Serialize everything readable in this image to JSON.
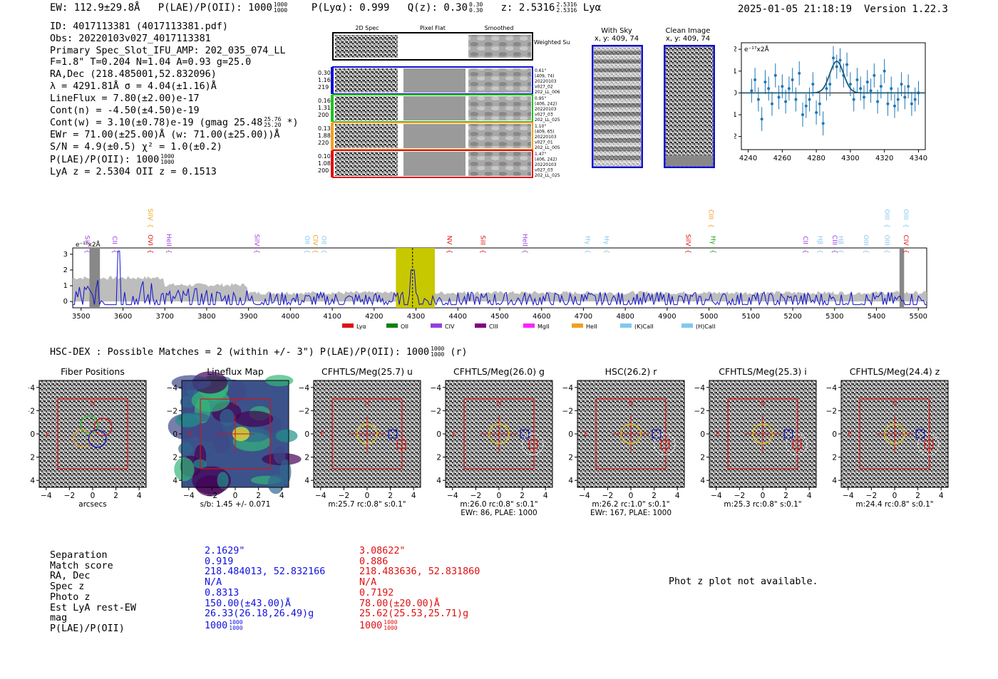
{
  "header": {
    "ew": "EW: 112.9±29.8Å",
    "plae_label": "P(LAE)/P(OII): 1000",
    "plae_hi": "1000",
    "plae_lo": "1000",
    "plya": "P(Lyα): 0.999",
    "qz": "Q(z): 0.30",
    "qz_hi": "0.30",
    "qz_lo": "0.30",
    "z": "z: 2.5316",
    "z_hi": "2.5316",
    "z_lo": "2.5316",
    "line": "Lyα",
    "timestamp": "2025-01-05 21:18:19",
    "version": "Version 1.22.3"
  },
  "info": {
    "id": "ID: 4017113381 (4017113381.pdf)",
    "obs": "Obs: 20220103v027_4017113381",
    "primary": "Primary Spec_Slot_IFU_AMP: 202_035_074_LL",
    "fiber": "F=1.8\"  T=0.204  N=1.04  A=0.93  g=25.0",
    "radec": "RA,Dec (218.485001,52.832096)",
    "lambda": "λ = 4291.81Å  σ = 4.04(±1.16)Å",
    "lineflux": "LineFlux = 7.80(±2.00)e-17",
    "contn": "Cont(n) = -4.50(±4.50)e-19",
    "contw": "Cont(w) = 3.10(±0.78)e-19 (gmag 25.48",
    "contw_hi": "25.76",
    "contw_lo": "25.20",
    "contw_end": "*)",
    "ewr": "EWr = 71.00(±25.00)Å (w: 71.00(±25.00))Å",
    "sn": "S/N = 4.9(±0.5)  χ² = 1.0(±0.2)",
    "plae": "P(LAE)/P(OII): 1000",
    "plae_hi": "1000",
    "plae_lo": "1000",
    "lyaz": "LyA z = 2.5304  OII z = 0.1513"
  },
  "spec2d": {
    "cols": [
      "2D Spec",
      "Pixel Flat",
      "Smoothed"
    ],
    "weighted": "Weighted Sum",
    "rows": [
      {
        "l1": "0.30",
        "l2": "1.16",
        "l3": "219",
        "r1": "0.61\"",
        "r2": "(409, 74)",
        "r3": "20220103",
        "r4": "v027_02",
        "r5": "202_LL_006",
        "color": "#1010d0"
      },
      {
        "l1": "0.16",
        "l2": "1.31",
        "l3": "200",
        "r1": "0.95\"",
        "r2": "(406, 242)",
        "r3": "20220103",
        "r4": "v027_03",
        "r5": "202_LL_025",
        "color": "#20c020"
      },
      {
        "l1": "0.13",
        "l2": "1.88",
        "l3": "220",
        "r1": "1.10\"",
        "r2": "(409, 65)",
        "r3": "20220103",
        "r4": "v027_01",
        "r5": "202_LL_005",
        "color": "#f0a020"
      },
      {
        "l1": "0.10",
        "l2": "1.08",
        "l3": "200",
        "r1": "1.47\"",
        "r2": "(406, 242)",
        "r3": "20220103",
        "r4": "v027_03",
        "r5": "202_LL_025",
        "color": "#e01010"
      }
    ]
  },
  "sky": {
    "title": "With Sky",
    "coords": "x, y: 409, 74"
  },
  "clean": {
    "title": "Clean Image",
    "coords": "x, y: 409, 74"
  },
  "zoom_plot": {
    "ylabel": "e⁻¹⁷x2Å",
    "xticks": [
      "4240",
      "4260",
      "4280",
      "4300",
      "4320",
      "4340"
    ],
    "yticks": [
      "2",
      "1",
      "0",
      "−1",
      "−2"
    ]
  },
  "full_spec": {
    "ylabel": "e⁻¹⁷x2Å",
    "xticks": [
      "3500",
      "3600",
      "3700",
      "3800",
      "3900",
      "4000",
      "4100",
      "4200",
      "4300",
      "4400",
      "4500",
      "4600",
      "4700",
      "4800",
      "4900",
      "5000",
      "5100",
      "5200",
      "5300",
      "5400",
      "5500"
    ],
    "yticks": [
      "3",
      "2",
      "1",
      "0"
    ],
    "lines": [
      {
        "name": "SiII",
        "w": 3505,
        "color": "#a040e0",
        "row": 0
      },
      {
        "name": "CII",
        "w": 3570,
        "color": "#a040e0",
        "row": 0
      },
      {
        "name": "SiIV",
        "w": 3655,
        "color": "#f0a020",
        "row": 2
      },
      {
        "name": "OVI",
        "w": 3655,
        "color": "#e01010",
        "row": 0
      },
      {
        "name": "HeII",
        "w": 3700,
        "color": "#a040e0",
        "row": 0
      },
      {
        "name": "SiIV",
        "w": 3910,
        "color": "#a040e0",
        "row": 0
      },
      {
        "name": "OII",
        "w": 4030,
        "color": "#80c8f0",
        "row": 0
      },
      {
        "name": "CIV",
        "w": 4050,
        "color": "#f0a020",
        "row": 0
      },
      {
        "name": "OII",
        "w": 4070,
        "color": "#80c8f0",
        "row": 0
      },
      {
        "name": "NV",
        "w": 4370,
        "color": "#e01010",
        "row": 0
      },
      {
        "name": "SiII",
        "w": 4450,
        "color": "#e01010",
        "row": 0
      },
      {
        "name": "HeII",
        "w": 4550,
        "color": "#a040e0",
        "row": 0
      },
      {
        "name": "Hγ",
        "w": 4700,
        "color": "#80c8f0",
        "row": 0
      },
      {
        "name": "Hγ",
        "w": 4745,
        "color": "#80c8f0",
        "row": 0
      },
      {
        "name": "SiIV",
        "w": 4940,
        "color": "#e01010",
        "row": 0
      },
      {
        "name": "CIII",
        "w": 4995,
        "color": "#f0a020",
        "row": 2
      },
      {
        "name": "Hγ",
        "w": 5000,
        "color": "#20a020",
        "row": 0
      },
      {
        "name": "CII",
        "w": 5220,
        "color": "#a040e0",
        "row": 0
      },
      {
        "name": "Hβ",
        "w": 5255,
        "color": "#80c8f0",
        "row": 0
      },
      {
        "name": "CIII",
        "w": 5290,
        "color": "#a040e0",
        "row": 0
      },
      {
        "name": "Hβ",
        "w": 5305,
        "color": "#80c8f0",
        "row": 0
      },
      {
        "name": "OIII",
        "w": 5365,
        "color": "#80c8f0",
        "row": 0
      },
      {
        "name": "OIII",
        "w": 5415,
        "color": "#80c8f0",
        "row": 2
      },
      {
        "name": "OIII",
        "w": 5415,
        "color": "#80c8f0",
        "row": 0
      },
      {
        "name": "OIII",
        "w": 5460,
        "color": "#80c8f0",
        "row": 2
      },
      {
        "name": "CIV",
        "w": 5460,
        "color": "#e01010",
        "row": 0
      }
    ],
    "legend": [
      {
        "name": "Lyα",
        "color": "#e01010"
      },
      {
        "name": "OII",
        "color": "#108010"
      },
      {
        "name": "CIV",
        "color": "#9040e0"
      },
      {
        "name": "CIII",
        "color": "#800080"
      },
      {
        "name": "MgII",
        "color": "#ff20ff"
      },
      {
        "name": "HeII",
        "color": "#f0a020"
      },
      {
        "name": "(K)CaII",
        "color": "#80c8f0"
      },
      {
        "name": "(H)CaII",
        "color": "#80c8f0"
      }
    ]
  },
  "hsc": {
    "line": "HSC-DEX : Possible Matches = 2 (within +/- 3\")  P(LAE)/P(OII): 1000",
    "hi": "1000",
    "lo": "1000",
    "end": "(r)"
  },
  "cutouts": [
    {
      "title": "Fiber Positions",
      "cap1": "arcsecs",
      "cap2": ""
    },
    {
      "title": "Lineflux Map",
      "cap1": "s/b: 1.45 +/- 0.071",
      "cap2": ""
    },
    {
      "title": "CFHTLS/Meg(25.7) u",
      "cap1": "m:25.7 rc:0.8\"  s:0.1\"",
      "cap2": ""
    },
    {
      "title": "CFHTLS/Meg(26.0) g",
      "cap1": "m:26.0 rc:0.8\"  s:0.1\"",
      "cap2": "EWr: 86, PLAE: 1000"
    },
    {
      "title": "HSC(26.2) r",
      "cap1": "m:26.2 rc:1.0\"  s:0.1\"",
      "cap2": "EWr: 167, PLAE: 1000"
    },
    {
      "title": "CFHTLS/Meg(25.3) i",
      "cap1": "m:25.3 rc:0.8\"  s:0.1\"",
      "cap2": ""
    },
    {
      "title": "CFHTLS/Meg(24.4) z",
      "cap1": "m:24.4 rc:0.8\"  s:0.1\"",
      "cap2": ""
    }
  ],
  "cutout_ticks": {
    "x": [
      "−4",
      "−2",
      "0",
      "2",
      "4"
    ],
    "y": [
      "4",
      "2",
      "0",
      "−2",
      "−4"
    ],
    "N": "N",
    "E": "E"
  },
  "matches": {
    "labels": [
      "Separation",
      "Match score",
      "RA, Dec",
      "Spec z",
      "Photo z",
      "Est LyA rest-EW",
      "mag",
      "P(LAE)/P(OII)"
    ],
    "m1": {
      "color": "#1010e0",
      "values": [
        "2.1629\"",
        "0.919",
        "218.484013, 52.832166",
        "N/A",
        "0.8313",
        "150.00(±43.00)Å",
        "26.33(26.18,26.49)g",
        "1000"
      ],
      "hi": "1000",
      "lo": "1000"
    },
    "m2": {
      "color": "#e01010",
      "values": [
        "3.08622\"",
        "0.886",
        "218.483636, 52.831860",
        "N/A",
        "0.7192",
        "78.00(±20.00)Å",
        "25.62(25.53,25.71)g",
        "1000"
      ],
      "hi": "1000",
      "lo": "1000"
    },
    "photz": "Phot z plot not available."
  },
  "chart_data": [
    {
      "type": "scatter",
      "title": "",
      "xlabel": "",
      "ylabel": "e-17 x2Å",
      "xlim": [
        4236,
        4344
      ],
      "ylim": [
        -2.6,
        2.3
      ],
      "x": [
        4242,
        4244,
        4246,
        4248,
        4250,
        4252,
        4254,
        4256,
        4258,
        4260,
        4262,
        4264,
        4266,
        4268,
        4270,
        4272,
        4274,
        4276,
        4278,
        4280,
        4282,
        4284,
        4286,
        4288,
        4290,
        4292,
        4294,
        4296,
        4298,
        4300,
        4302,
        4304,
        4306,
        4308,
        4310,
        4312,
        4314,
        4316,
        4318,
        4320,
        4322,
        4324,
        4326,
        4328,
        4330,
        4332,
        4334,
        4336,
        4338,
        4340
      ],
      "y": [
        0.1,
        0.6,
        -0.3,
        -1.2,
        0.5,
        0.2,
        -0.5,
        0.8,
        -0.2,
        0.3,
        -0.4,
        0.2,
        0.6,
        -0.3,
        0.9,
        -1.0,
        -0.6,
        -0.3,
        0.4,
        -0.9,
        -0.5,
        -1.4,
        0.2,
        0.4,
        1.6,
        1.2,
        1.5,
        0.8,
        1.3,
        0.4,
        -0.3,
        0.6,
        0.2,
        -0.2,
        0.5,
        0.1,
        0.8,
        -0.4,
        0.3,
        1.0,
        -0.5,
        0.2,
        -0.6,
        -0.3,
        0.4,
        -0.2,
        0.3,
        -0.5,
        -0.3,
        0.0
      ],
      "yerr": 0.55,
      "fit": {
        "center": 4292,
        "sigma": 4.04,
        "amp": 1.45,
        "base": 0.0
      }
    },
    {
      "type": "line",
      "xlabel": "",
      "ylabel": "e-17 x2Å",
      "xlim": [
        3480,
        5520
      ],
      "ylim": [
        -0.4,
        3.4
      ],
      "highlight_band": [
        4252,
        4345
      ],
      "marker_line": 4291.81
    }
  ]
}
